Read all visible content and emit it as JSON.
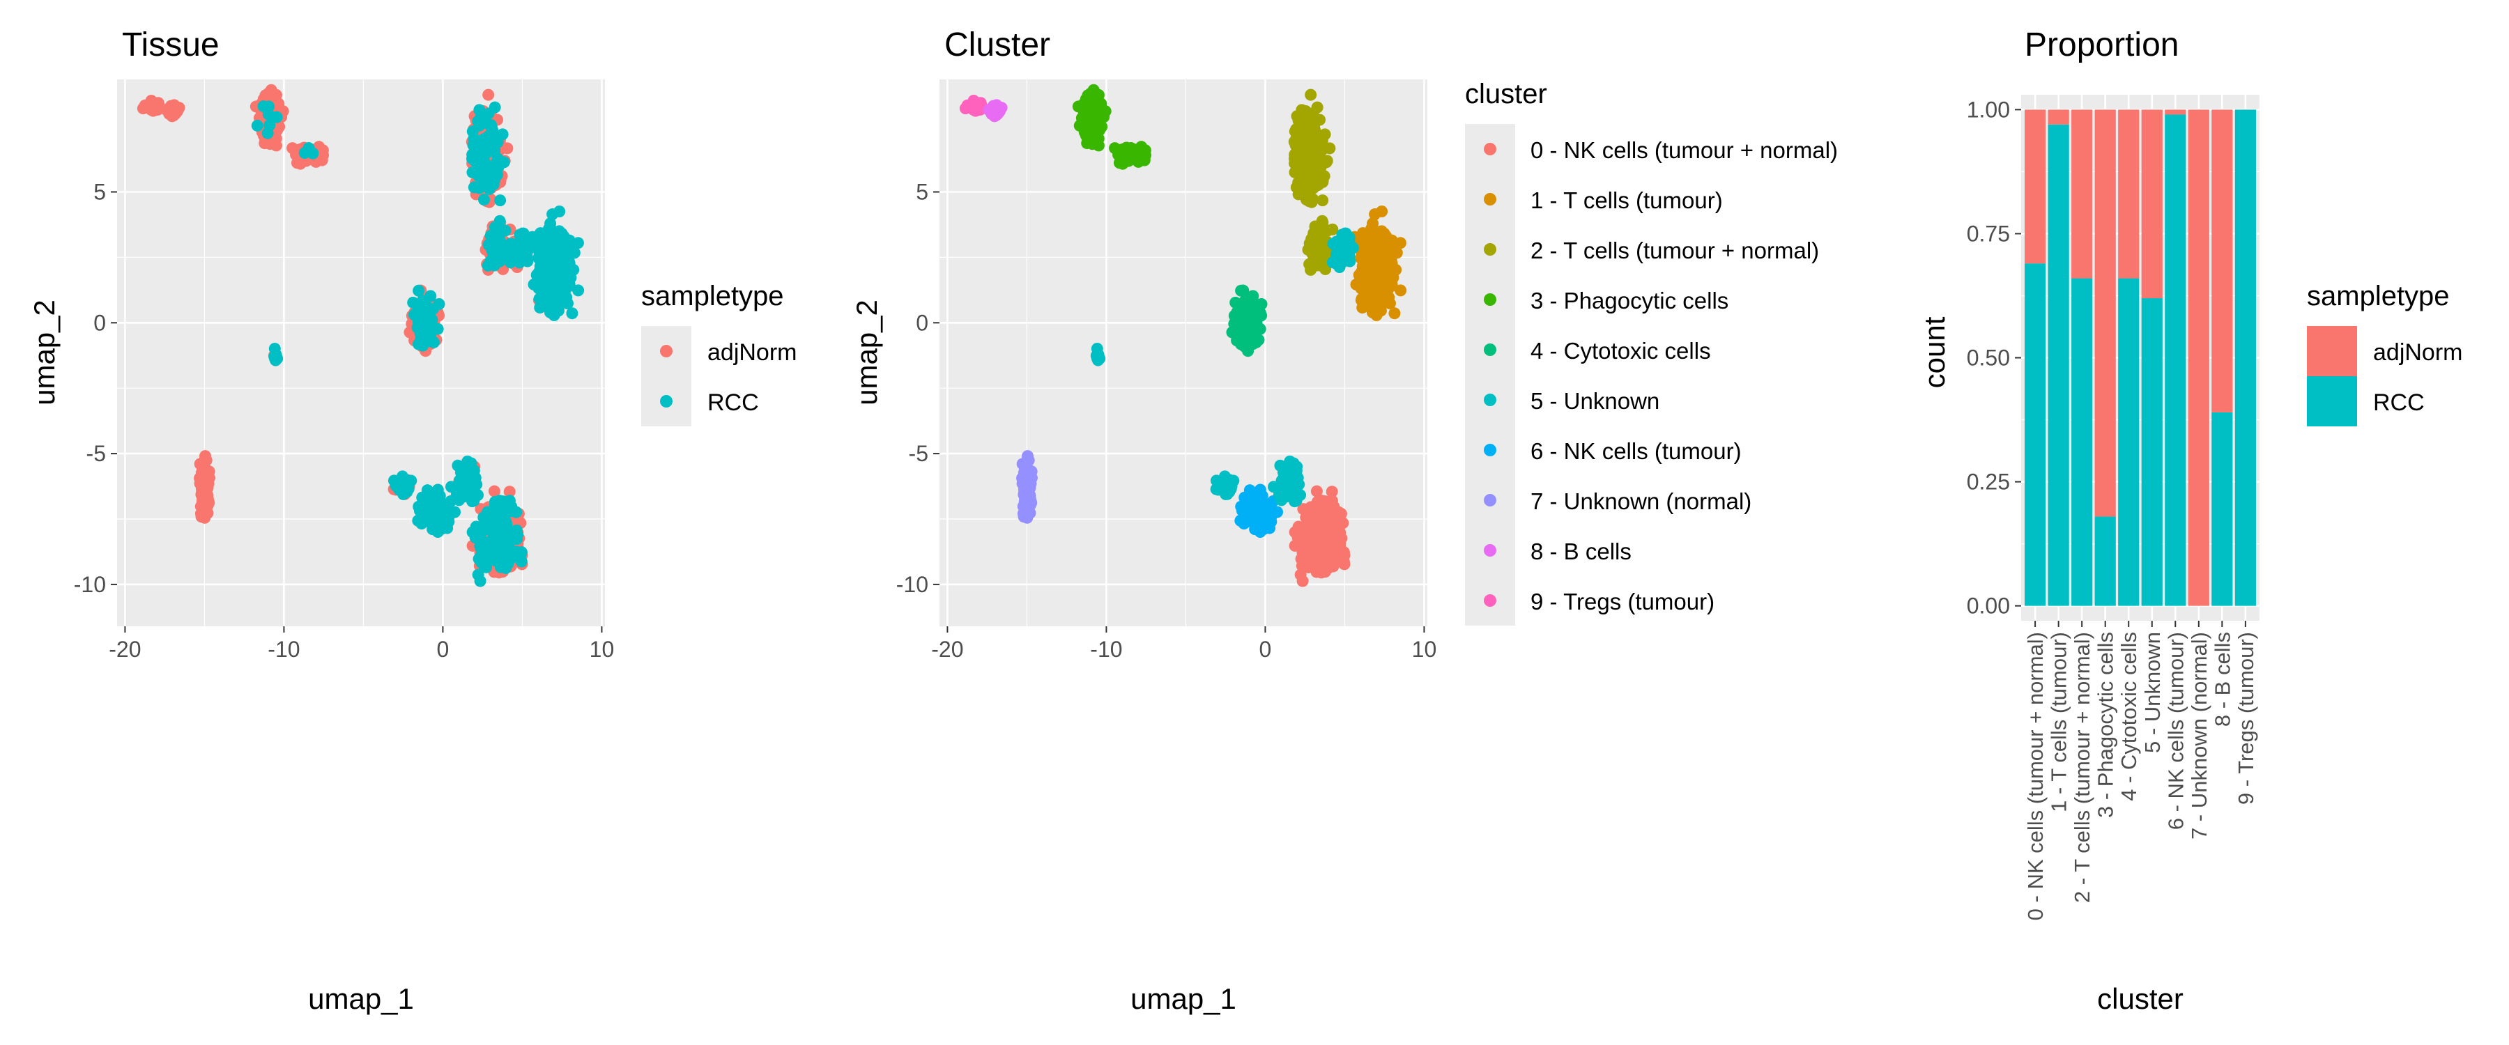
{
  "colors": {
    "adjNorm": "#F8766D",
    "RCC": "#00BFC4",
    "panel_bg": "#EBEBEB",
    "grid": "#FFFFFF",
    "text": "#000000",
    "tick_text": "#4D4D4D"
  },
  "cluster_colors": [
    "#F8766D",
    "#D89000",
    "#A3A500",
    "#39B600",
    "#00BF7D",
    "#00BFC4",
    "#00B0F6",
    "#9590FF",
    "#E76BF3",
    "#FF62BC"
  ],
  "chart_data": [
    {
      "type": "scatter",
      "title": "Tissue",
      "xlabel": "umap_1",
      "ylabel": "umap_2",
      "xlim": [
        -20.5,
        10.2
      ],
      "ylim": [
        -11.6,
        9.3
      ],
      "x_ticks": [
        -20,
        -10,
        0,
        10
      ],
      "y_ticks": [
        -10,
        -5,
        0,
        5
      ],
      "x_tick_labels": [
        "-20",
        "-10",
        "0",
        "10"
      ],
      "y_tick_labels": [
        "-10",
        "-5",
        "0",
        "5"
      ],
      "grid": true,
      "legend": {
        "title": "sampletype",
        "placement": "right",
        "entries": [
          "adjNorm",
          "RCC"
        ]
      },
      "series": [
        {
          "name": "adjNorm"
        },
        {
          "name": "RCC"
        }
      ]
    },
    {
      "type": "scatter",
      "title": "Cluster",
      "xlabel": "umap_1",
      "ylabel": "umap_2",
      "xlim": [
        -20.5,
        10.2
      ],
      "ylim": [
        -11.6,
        9.3
      ],
      "x_ticks": [
        -20,
        -10,
        0,
        10
      ],
      "y_ticks": [
        -10,
        -5,
        0,
        5
      ],
      "x_tick_labels": [
        "-20",
        "-10",
        "0",
        "10"
      ],
      "y_tick_labels": [
        "-10",
        "-5",
        "0",
        "5"
      ],
      "grid": true,
      "legend": {
        "title": "cluster",
        "placement": "right",
        "entries": [
          "0 - NK cells (tumour + normal)",
          "1 - T cells (tumour)",
          "2 - T cells (tumour + normal)",
          "3 - Phagocytic cells",
          "4 - Cytotoxic cells",
          "5 - Unknown",
          "6 - NK cells (tumour)",
          "7 - Unknown (normal)",
          "8 - B cells",
          "9 - Tregs (tumour)"
        ]
      }
    },
    {
      "type": "bar",
      "stacked": true,
      "title": "Proportion",
      "xlabel": "cluster",
      "ylabel": "count",
      "ylim": [
        -0.03,
        1.03
      ],
      "y_ticks": [
        0,
        0.25,
        0.5,
        0.75,
        1
      ],
      "y_tick_labels": [
        "0.00",
        "0.25",
        "0.50",
        "0.75",
        "1.00"
      ],
      "grid": true,
      "categories": [
        "0 - NK cells (tumour + normal)",
        "1 - T cells (tumour)",
        "2 - T cells (tumour + normal)",
        "3 - Phagocytic cells",
        "4 - Cytotoxic cells",
        "5 - Unknown",
        "6 - NK cells (tumour)",
        "7 - Unknown (normal)",
        "8 - B cells",
        "9 - Tregs (tumour)"
      ],
      "series": [
        {
          "name": "adjNorm",
          "values": [
            0.31,
            0.03,
            0.34,
            0.82,
            0.34,
            0.38,
            0.01,
            1.0,
            0.61,
            0.0
          ]
        },
        {
          "name": "RCC",
          "values": [
            0.69,
            0.97,
            0.66,
            0.18,
            0.66,
            0.62,
            0.99,
            0.0,
            0.39,
            1.0
          ]
        }
      ],
      "legend": {
        "title": "sampletype",
        "placement": "right",
        "entries": [
          "adjNorm",
          "RCC"
        ]
      }
    }
  ]
}
